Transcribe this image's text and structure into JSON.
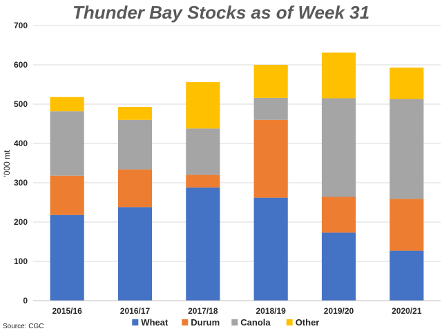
{
  "chart_data": {
    "type": "bar",
    "stacked": true,
    "title": "Thunder Bay Stocks as of Week 31",
    "ylabel": "'000 mt",
    "xlabel": "",
    "ylim": [
      0,
      700
    ],
    "yticks": [
      0,
      100,
      200,
      300,
      400,
      500,
      600,
      700
    ],
    "grid": true,
    "legend_position": "bottom",
    "categories": [
      "2015/16",
      "2016/17",
      "2017/18",
      "2018/19",
      "2019/20",
      "2020/21"
    ],
    "series": [
      {
        "name": "Wheat",
        "color": "#4472C4",
        "values": [
          218,
          238,
          288,
          262,
          173,
          127
        ]
      },
      {
        "name": "Durum",
        "color": "#ED7D31",
        "values": [
          100,
          96,
          32,
          198,
          91,
          132
        ]
      },
      {
        "name": "Canola",
        "color": "#A5A5A5",
        "values": [
          164,
          126,
          118,
          56,
          251,
          254
        ]
      },
      {
        "name": "Other",
        "color": "#FFC000",
        "values": [
          36,
          33,
          118,
          84,
          116,
          80
        ]
      }
    ]
  },
  "source": "Source: CGC"
}
